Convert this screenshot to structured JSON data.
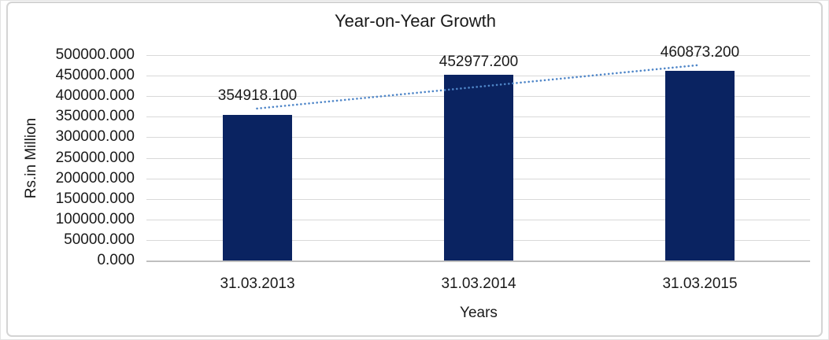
{
  "chart_data": {
    "type": "bar",
    "title": "Year-on-Year Growth",
    "xlabel": "Years",
    "ylabel": "Rs.in Million",
    "categories": [
      "31.03.2013",
      "31.03.2014",
      "31.03.2015"
    ],
    "values": [
      354918.1,
      452977.2,
      460873.2
    ],
    "data_labels": [
      "354918.100",
      "452977.200",
      "460873.200"
    ],
    "y_tick_labels": [
      "500000.000",
      "450000.000",
      "400000.000",
      "350000.000",
      "300000.000",
      "250000.000",
      "200000.000",
      "150000.000",
      "100000.000",
      "50000.000",
      "0.000"
    ],
    "ylim": [
      0,
      500000
    ],
    "y_tick_step": 50000,
    "grid": true,
    "legend": "none",
    "trendline": {
      "type": "linear",
      "style": "dotted"
    },
    "colors": {
      "bar": "#0a2361",
      "trendline": "#4f86c8",
      "gridline": "#d9d9d9",
      "axis_line": "#bfbfbf",
      "text": "#1a1a1a",
      "frame_border": "#d4d4d4",
      "background": "#ffffff"
    }
  }
}
